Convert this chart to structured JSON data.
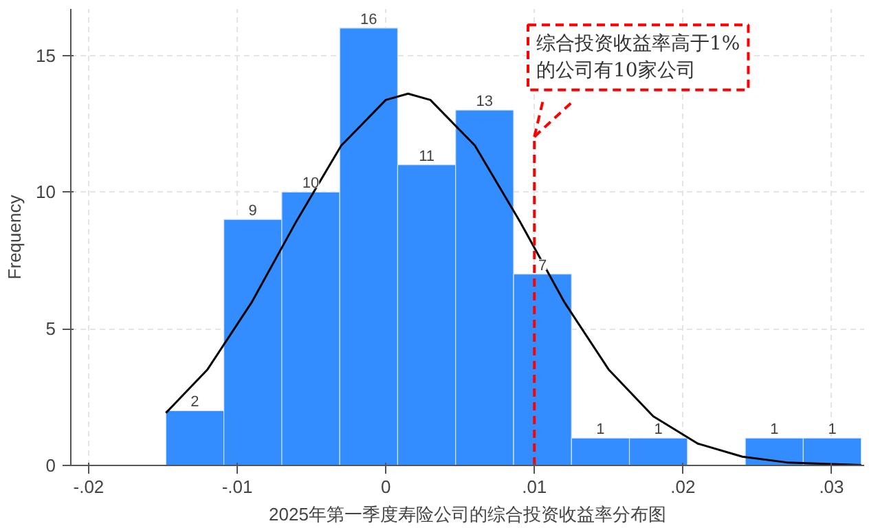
{
  "chart_data": {
    "type": "histogram",
    "xlabel": "2025年第一季度寿险公司的综合投资收益率分布图",
    "ylabel": "Frequency",
    "bins": [
      -0.0148,
      -0.0109,
      -0.007,
      -0.0031,
      0.0008,
      0.0047,
      0.0086,
      0.0125,
      0.0164,
      0.0203,
      0.0242,
      0.0281,
      0.032
    ],
    "series": [
      {
        "color": "#338dff",
        "values": [
          2,
          9,
          10,
          16,
          11,
          13,
          7,
          1,
          1,
          0,
          1,
          1
        ],
        "value_labels": [
          "2",
          "9",
          "10",
          "16",
          "11",
          "13",
          "7",
          "1",
          "1",
          null,
          "1",
          "1"
        ]
      },
      {
        "type": "line",
        "color": "#000000",
        "x": [
          -0.0148,
          -0.012,
          -0.009,
          -0.006,
          -0.003,
          0,
          0.0015,
          0.003,
          0.006,
          0.009,
          0.012,
          0.015,
          0.018,
          0.021,
          0.024,
          0.027,
          0.032
        ],
        "values": [
          1.92,
          3.51,
          5.99,
          8.95,
          11.7,
          13.37,
          13.6,
          13.37,
          11.7,
          8.95,
          5.99,
          3.51,
          1.8,
          0.8,
          0.32,
          0.11,
          0.01
        ]
      }
    ],
    "xlim": [
      -0.0212,
      0.0322
    ],
    "ylim": [
      0,
      16.7
    ],
    "xticks": [
      {
        "value": -0.02,
        "label": "-.02"
      },
      {
        "value": -0.01,
        "label": "-.01"
      },
      0,
      {
        "value": 0.01,
        "label": ".01"
      },
      {
        "value": 0.02,
        "label": ".02"
      },
      {
        "value": 0.03,
        "label": ".03"
      }
    ],
    "yticks": [
      0,
      5,
      10,
      15
    ],
    "grid": true,
    "ref_lines": [
      {
        "axis": "x",
        "value": 0.01,
        "color": "#ff0000",
        "line_style": "dashed",
        "label": "综合投资收益率高于1%\n的公司有10家公司"
      }
    ]
  }
}
